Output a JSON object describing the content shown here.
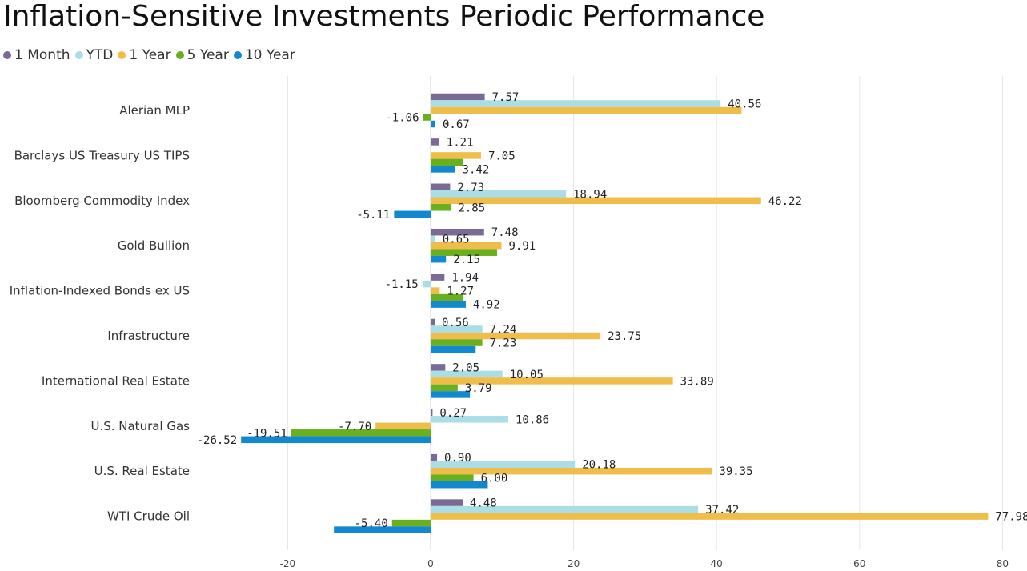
{
  "title": "Inflation-Sensitive Investments Periodic Performance",
  "colors": {
    "1 Month": "#7a6a96",
    "YTD": "#abdde6",
    "1 Year": "#efbe4a",
    "5 Year": "#6aaf1e",
    "10 Year": "#1188cf"
  },
  "chart_data": {
    "type": "bar",
    "orientation": "horizontal",
    "title": "Inflation-Sensitive Investments Periodic Performance",
    "categories": [
      "Alerian MLP",
      "Barclays US Treasury US TIPS",
      "Bloomberg Commodity Index",
      "Gold Bullion",
      "Inflation-Indexed Bonds ex US",
      "Infrastructure",
      "International Real Estate",
      "U.S. Natural Gas",
      "U.S. Real Estate",
      "WTI Crude Oil"
    ],
    "series": [
      {
        "name": "1 Month",
        "values": [
          7.57,
          1.21,
          2.73,
          7.48,
          1.94,
          0.56,
          2.05,
          0.27,
          0.9,
          4.48
        ],
        "labels": [
          "7.57",
          "1.21",
          "2.73",
          "7.48",
          "1.94",
          "0.56",
          "2.05",
          "0.27",
          "0.90",
          "4.48"
        ]
      },
      {
        "name": "YTD",
        "values": [
          40.56,
          null,
          18.94,
          0.65,
          -1.15,
          7.24,
          10.05,
          10.86,
          20.18,
          37.42
        ],
        "labels": [
          "40.56",
          "",
          "18.94",
          "0.65",
          "-1.15",
          "7.24",
          "10.05",
          "10.86",
          "20.18",
          "37.42"
        ]
      },
      {
        "name": "1 Year",
        "values": [
          43.5,
          7.05,
          46.22,
          9.91,
          1.27,
          23.75,
          33.89,
          -7.7,
          39.35,
          77.98
        ],
        "labels": [
          "",
          "7.05",
          "46.22",
          "9.91",
          "1.27",
          "23.75",
          "33.89",
          "-7.70",
          "39.35",
          "77.98"
        ]
      },
      {
        "name": "5 Year",
        "values": [
          -1.06,
          4.5,
          2.85,
          9.3,
          4.6,
          7.23,
          3.79,
          -19.51,
          6.0,
          -5.4
        ],
        "labels": [
          "-1.06",
          "",
          "2.85",
          "",
          "",
          "7.23",
          "3.79",
          "-19.51",
          "6.00",
          "-5.40"
        ]
      },
      {
        "name": "10 Year",
        "values": [
          0.67,
          3.42,
          -5.11,
          2.15,
          4.92,
          6.3,
          5.5,
          -26.52,
          8.0,
          -13.53
        ],
        "labels": [
          "0.67",
          "3.42",
          "-5.11",
          "2.15",
          "4.92",
          "",
          "",
          "-26.52",
          "",
          ""
        ]
      }
    ],
    "xticks": [
      -20,
      0,
      20,
      40,
      60,
      80
    ],
    "xlim": [
      -26.52,
      80
    ],
    "grid": true,
    "legend": "top-left"
  }
}
